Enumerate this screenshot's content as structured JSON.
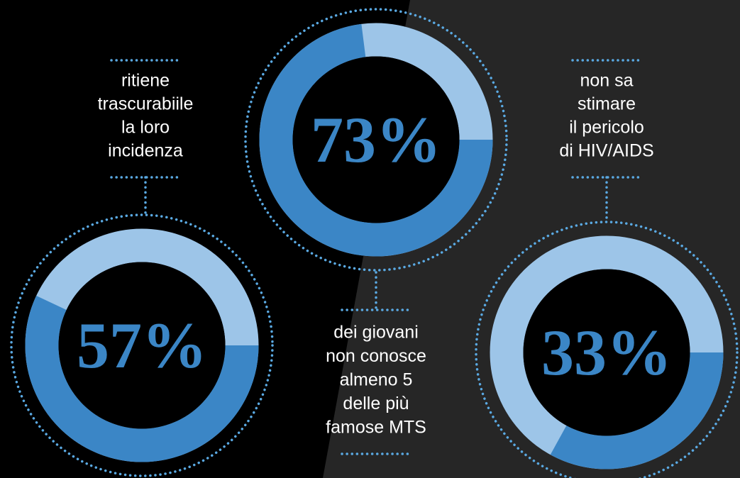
{
  "chart_data": [
    {
      "type": "donut",
      "values": [
        57
      ],
      "value_labels": [
        "57%"
      ],
      "color": "#3b86c6",
      "track_color": "#9dc5e8",
      "annotation": [
        "ritiene",
        "trascurabiile",
        "la loro",
        "incidenza"
      ]
    },
    {
      "type": "donut",
      "values": [
        73
      ],
      "value_labels": [
        "73%"
      ],
      "color": "#3b86c6",
      "track_color": "#9dc5e8",
      "annotation": [
        "dei giovani",
        "non conosce",
        "almeno 5",
        "delle più",
        "famose MTS"
      ]
    },
    {
      "type": "donut",
      "values": [
        33
      ],
      "value_labels": [
        "33%"
      ],
      "color": "#3b86c6",
      "track_color": "#9dc5e8",
      "annotation": [
        "non sa",
        "stimare",
        "il pericolo",
        "di HIV/AIDS"
      ]
    }
  ]
}
